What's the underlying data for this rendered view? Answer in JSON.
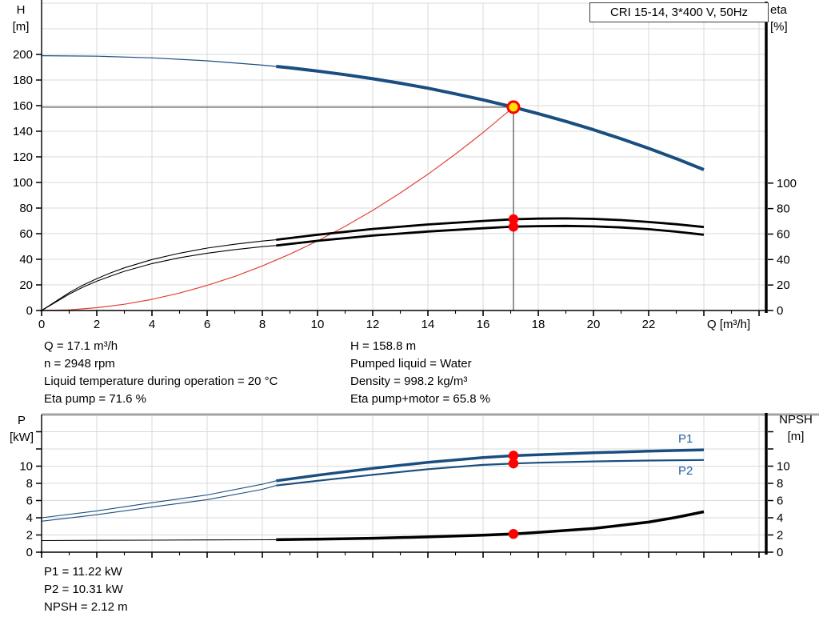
{
  "title_box": "CRI 15-14, 3*400 V, 50Hz",
  "pump_info": {
    "left": [
      "Q = 17.1 m³/h",
      "n = 2948 rpm",
      "Liquid temperature during operation = 20 °C",
      "Eta pump = 71.6 %"
    ],
    "right": [
      "H = 158.8 m",
      "Pumped liquid = Water",
      "Density = 998.2 kg/m³",
      "Eta pump+motor = 65.8 %"
    ],
    "bottom": [
      "P1 = 11.22 kW",
      "P2 = 10.31 kW",
      "NPSH = 2.12 m"
    ]
  },
  "axis_titles": {
    "h": [
      "H",
      "[m]"
    ],
    "eta": [
      "eta",
      "[%]"
    ],
    "p": [
      "P",
      "[kW]"
    ],
    "npsh": [
      "NPSH",
      "[m]"
    ],
    "q": "Q [m³/h]"
  },
  "curve_labels": {
    "p1": "P1",
    "p2": "P2"
  },
  "colors": {
    "curve_blue": "#1a4e80",
    "curve_black": "#000000",
    "curve_red": "#e04438",
    "marker_red": "#ff0000",
    "marker_yellow": "#ffe10a",
    "grid": "#d9d9d9",
    "crosshair": "#4d4d4d",
    "axis": "#000000",
    "border_gray": "#a3a3a3"
  },
  "duty_point": {
    "q_m3h": 17.1,
    "h_m": 158.8,
    "eta_pump_pct": 71.6,
    "eta_pump_motor_pct": 65.8,
    "p1_kw": 11.22,
    "p2_kw": 10.31,
    "npsh_m": 2.12,
    "n_rpm": 2948
  },
  "chart_data": [
    {
      "type": "line",
      "title": "CRI 15-14, 3*400 V, 50Hz",
      "xlabel": "Q [m³/h]",
      "ylabel_left": "H [m]",
      "ylabel_right": "eta [%]",
      "xlim": [
        0,
        26.26
      ],
      "ylim_left": [
        0,
        240
      ],
      "ylim_right": [
        0,
        241.2
      ],
      "x_tick_step": 2,
      "x_tick_max": 26,
      "x_label_max": 22,
      "grid_y_step": 20,
      "left_ticks": [
        0,
        20,
        40,
        60,
        80,
        100,
        120,
        140,
        160,
        180,
        200
      ],
      "left_label_max": 200,
      "right_ticks": [
        0,
        20,
        40,
        60,
        80,
        100
      ],
      "right_label_max": 100,
      "series": [
        {
          "name": "head-curve-extension",
          "axis": "left",
          "color": "blue",
          "width": 1.2,
          "points": [
            [
              0,
              199
            ],
            [
              2,
              198.6
            ],
            [
              4,
              197.3
            ],
            [
              6,
              195.0
            ],
            [
              8,
              191.6
            ],
            [
              8.5,
              190.6
            ]
          ]
        },
        {
          "name": "head-curve",
          "axis": "left",
          "color": "blue",
          "width": 4,
          "points": [
            [
              8.5,
              190.6
            ],
            [
              9,
              189.5
            ],
            [
              10,
              187.0
            ],
            [
              11,
              184.2
            ],
            [
              12,
              181.0
            ],
            [
              13,
              177.5
            ],
            [
              14,
              173.6
            ],
            [
              15,
              169.2
            ],
            [
              16,
              164.5
            ],
            [
              17.1,
              158.8
            ],
            [
              18,
              153.7
            ],
            [
              19,
              147.7
            ],
            [
              20,
              141.2
            ],
            [
              21,
              134.1
            ],
            [
              22,
              126.6
            ],
            [
              23,
              118.6
            ],
            [
              24,
              110
            ]
          ]
        },
        {
          "name": "affinity-parabola",
          "axis": "left",
          "color": "red",
          "width": 1.2,
          "points": [
            [
              0,
              0
            ],
            [
              1,
              0.5
            ],
            [
              2,
              2.2
            ],
            [
              3,
              4.9
            ],
            [
              4,
              8.7
            ],
            [
              5,
              13.6
            ],
            [
              6,
              19.6
            ],
            [
              7,
              26.6
            ],
            [
              8,
              34.8
            ],
            [
              9,
              44.0
            ],
            [
              10,
              54.3
            ],
            [
              11,
              65.7
            ],
            [
              12,
              78.2
            ],
            [
              13,
              91.8
            ],
            [
              14,
              106.4
            ],
            [
              15,
              122.2
            ],
            [
              16,
              139.0
            ],
            [
              17.1,
              158.8
            ]
          ]
        },
        {
          "name": "eta-pump-curve-extension",
          "axis": "right",
          "color": "black",
          "width": 1.1,
          "points": [
            [
              0,
              0
            ],
            [
              0.5,
              7
            ],
            [
              1,
              14
            ],
            [
              1.5,
              20
            ],
            [
              2,
              25
            ],
            [
              2.5,
              29.5
            ],
            [
              3,
              33.5
            ],
            [
              4,
              40
            ],
            [
              5,
              45
            ],
            [
              6,
              49
            ],
            [
              7,
              52
            ],
            [
              8,
              54.5
            ],
            [
              8.5,
              55.5
            ]
          ]
        },
        {
          "name": "eta-pump-curve",
          "axis": "right",
          "color": "black",
          "width": 2.8,
          "points": [
            [
              8.5,
              55.5
            ],
            [
              10,
              59.5
            ],
            [
              12,
              64
            ],
            [
              14,
              67.5
            ],
            [
              16,
              70.3
            ],
            [
              17.1,
              71.6
            ],
            [
              18,
              72.1
            ],
            [
              19,
              72.3
            ],
            [
              20,
              71.9
            ],
            [
              21,
              71
            ],
            [
              22,
              69.5
            ],
            [
              23,
              67.7
            ],
            [
              24,
              65.5
            ]
          ]
        },
        {
          "name": "eta-pump-motor-curve-extension",
          "axis": "right",
          "color": "black",
          "width": 1.1,
          "points": [
            [
              0,
              0
            ],
            [
              0.5,
              6.4
            ],
            [
              1,
              12.9
            ],
            [
              1.5,
              18.4
            ],
            [
              2,
              23
            ],
            [
              2.5,
              27
            ],
            [
              3,
              30.8
            ],
            [
              4,
              36.8
            ],
            [
              5,
              41.4
            ],
            [
              6,
              45
            ],
            [
              7,
              47.8
            ],
            [
              8,
              50.1
            ],
            [
              8.5,
              51
            ]
          ]
        },
        {
          "name": "eta-pump-motor-curve",
          "axis": "right",
          "color": "black",
          "width": 2.8,
          "points": [
            [
              8.5,
              51
            ],
            [
              10,
              54.7
            ],
            [
              12,
              58.8
            ],
            [
              14,
              62
            ],
            [
              16,
              64.6
            ],
            [
              17.1,
              65.8
            ],
            [
              18,
              66.2
            ],
            [
              19,
              66.4
            ],
            [
              20,
              66
            ],
            [
              21,
              65.2
            ],
            [
              22,
              63.8
            ],
            [
              23,
              61.9
            ],
            [
              24,
              59.5
            ]
          ]
        }
      ],
      "crosshair": {
        "q": 17.1,
        "h": 158.8
      },
      "markers": [
        {
          "shape": "ring",
          "axis": "left",
          "q": 17.1,
          "v": 158.8
        },
        {
          "shape": "dot",
          "axis": "right",
          "q": 17.1,
          "v": 71.6
        },
        {
          "shape": "dot",
          "axis": "right",
          "q": 17.1,
          "v": 65.8
        }
      ]
    },
    {
      "type": "line",
      "title": "",
      "xlabel": "",
      "ylabel_left": "P [kW]",
      "ylabel_right": "NPSH [m]",
      "xlim": [
        0,
        26.26
      ],
      "ylim_left": [
        0,
        16
      ],
      "ylim_right": [
        0,
        16
      ],
      "x_tick_step": 2,
      "x_tick_max": 26,
      "x_label_max": -1,
      "grid_y_step": 2,
      "left_ticks": [
        0,
        2,
        4,
        6,
        8,
        10,
        12,
        14
      ],
      "left_label_max": 10,
      "right_ticks": [
        0,
        2,
        4,
        6,
        8,
        10,
        12,
        14
      ],
      "right_label_max": 10,
      "series": [
        {
          "name": "p1-curve-extension",
          "axis": "left",
          "color": "blue",
          "width": 1.1,
          "points": [
            [
              0,
              4.0
            ],
            [
              2,
              4.8
            ],
            [
              4,
              5.75
            ],
            [
              6,
              6.65
            ],
            [
              8,
              7.9
            ],
            [
              8.5,
              8.3
            ]
          ]
        },
        {
          "name": "p1-curve",
          "axis": "left",
          "color": "blue",
          "width": 3.5,
          "points": [
            [
              8.5,
              8.3
            ],
            [
              10,
              8.95
            ],
            [
              12,
              9.75
            ],
            [
              14,
              10.45
            ],
            [
              16,
              11.0
            ],
            [
              17.1,
              11.22
            ],
            [
              18,
              11.32
            ],
            [
              20,
              11.55
            ],
            [
              22,
              11.75
            ],
            [
              24,
              11.9
            ]
          ]
        },
        {
          "name": "p2-curve-extension",
          "axis": "left",
          "color": "blue",
          "width": 1.1,
          "points": [
            [
              0,
              3.6
            ],
            [
              2,
              4.35
            ],
            [
              4,
              5.25
            ],
            [
              6,
              6.1
            ],
            [
              8,
              7.3
            ],
            [
              8.5,
              7.75
            ]
          ]
        },
        {
          "name": "p2-curve",
          "axis": "left",
          "color": "blue",
          "width": 2.2,
          "points": [
            [
              8.5,
              7.75
            ],
            [
              10,
              8.3
            ],
            [
              12,
              9.0
            ],
            [
              14,
              9.65
            ],
            [
              16,
              10.15
            ],
            [
              17.1,
              10.31
            ],
            [
              18,
              10.4
            ],
            [
              20,
              10.55
            ],
            [
              22,
              10.65
            ],
            [
              24,
              10.72
            ]
          ]
        },
        {
          "name": "npsh-curve-extension",
          "axis": "right",
          "color": "black",
          "width": 1.1,
          "points": [
            [
              0,
              1.35
            ],
            [
              2,
              1.38
            ],
            [
              4,
              1.4
            ],
            [
              6,
              1.42
            ],
            [
              8,
              1.44
            ],
            [
              8.5,
              1.45
            ]
          ]
        },
        {
          "name": "npsh-curve",
          "axis": "right",
          "color": "black",
          "width": 3.5,
          "points": [
            [
              8.5,
              1.45
            ],
            [
              10,
              1.52
            ],
            [
              12,
              1.62
            ],
            [
              14,
              1.78
            ],
            [
              16,
              1.98
            ],
            [
              17.1,
              2.12
            ],
            [
              18,
              2.3
            ],
            [
              20,
              2.75
            ],
            [
              22,
              3.5
            ],
            [
              23,
              4.05
            ],
            [
              24,
              4.7
            ]
          ]
        }
      ],
      "markers": [
        {
          "shape": "dot",
          "axis": "left",
          "q": 17.1,
          "v": 11.22
        },
        {
          "shape": "dot",
          "axis": "left",
          "q": 17.1,
          "v": 10.31
        },
        {
          "shape": "dot",
          "axis": "right",
          "q": 17.1,
          "v": 2.12
        }
      ]
    }
  ]
}
